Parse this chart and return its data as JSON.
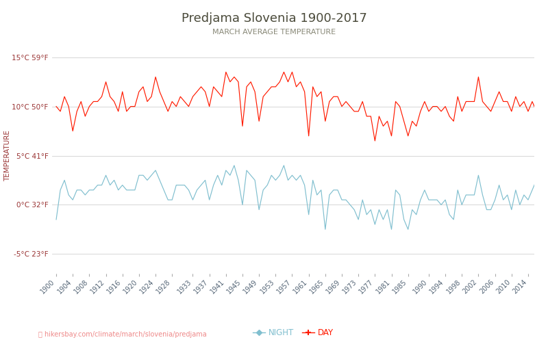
{
  "title": "Predjama Slovenia 1900-2017",
  "subtitle": "MARCH AVERAGE TEMPERATURE",
  "ylabel": "TEMPERATURE",
  "url": "hikersbay.com/climate/march/slovenia/predjama",
  "ylim": [
    -7,
    17
  ],
  "yticks": [
    -5,
    0,
    5,
    10,
    15
  ],
  "ytick_labels": [
    "-5°C 23°F",
    "0°C 32°F",
    "5°C 41°F",
    "10°C 50°F",
    "15°C 59°F"
  ],
  "xtick_labels": [
    "1900",
    "1904",
    "1908",
    "1912",
    "1916",
    "1920",
    "1924",
    "1928",
    "1933",
    "1937",
    "1941",
    "1945",
    "1949",
    "1953",
    "1957",
    "1961",
    "1965",
    "1969",
    "1973",
    "1977",
    "1981",
    "1985",
    "1990",
    "1994",
    "1998",
    "2002",
    "2006",
    "2010",
    "2014"
  ],
  "day_color": "#ff1a00",
  "night_color": "#80bfcf",
  "bg_color": "#ffffff",
  "title_color": "#4a4a3a",
  "subtitle_color": "#888877",
  "legend_night": "NIGHT",
  "legend_day": "DAY",
  "years": [
    1900,
    1901,
    1902,
    1903,
    1904,
    1905,
    1906,
    1907,
    1908,
    1909,
    1910,
    1911,
    1912,
    1913,
    1914,
    1915,
    1916,
    1917,
    1918,
    1919,
    1920,
    1921,
    1922,
    1923,
    1924,
    1925,
    1926,
    1927,
    1928,
    1929,
    1930,
    1931,
    1932,
    1933,
    1934,
    1935,
    1936,
    1937,
    1938,
    1939,
    1940,
    1941,
    1942,
    1943,
    1944,
    1945,
    1946,
    1947,
    1948,
    1949,
    1950,
    1951,
    1952,
    1953,
    1954,
    1955,
    1956,
    1957,
    1958,
    1959,
    1960,
    1961,
    1962,
    1963,
    1964,
    1965,
    1966,
    1967,
    1968,
    1969,
    1970,
    1971,
    1972,
    1973,
    1974,
    1975,
    1976,
    1977,
    1978,
    1979,
    1980,
    1981,
    1982,
    1983,
    1984,
    1985,
    1986,
    1987,
    1988,
    1989,
    1990,
    1991,
    1992,
    1993,
    1994,
    1995,
    1996,
    1997,
    1998,
    1999,
    2000,
    2001,
    2002,
    2003,
    2004,
    2005,
    2006,
    2007,
    2008,
    2009,
    2010,
    2011,
    2012,
    2013,
    2014,
    2015,
    2016
  ],
  "day_temps": [
    10.0,
    9.5,
    11.0,
    10.0,
    7.5,
    9.5,
    10.5,
    9.0,
    10.0,
    10.5,
    10.5,
    11.0,
    12.5,
    11.0,
    10.5,
    9.5,
    11.5,
    9.5,
    10.0,
    10.0,
    11.5,
    12.0,
    10.5,
    11.0,
    13.0,
    11.5,
    10.5,
    9.5,
    10.5,
    10.0,
    11.0,
    10.5,
    10.0,
    11.0,
    11.5,
    12.0,
    11.5,
    10.0,
    12.0,
    11.5,
    11.0,
    13.5,
    12.5,
    13.0,
    12.5,
    8.0,
    12.0,
    12.5,
    11.5,
    8.5,
    11.0,
    11.5,
    12.0,
    12.0,
    12.5,
    13.5,
    12.5,
    13.5,
    12.0,
    12.5,
    11.5,
    7.0,
    12.0,
    11.0,
    11.5,
    8.5,
    10.5,
    11.0,
    11.0,
    10.0,
    10.5,
    10.0,
    9.5,
    9.5,
    10.5,
    9.0,
    9.0,
    6.5,
    9.0,
    8.0,
    8.5,
    7.0,
    10.5,
    10.0,
    8.5,
    7.0,
    8.5,
    8.0,
    9.5,
    10.5,
    9.5,
    10.0,
    10.0,
    9.5,
    10.0,
    9.0,
    8.5,
    11.0,
    9.5,
    10.5,
    10.5,
    10.5,
    13.0,
    10.5,
    10.0,
    9.5,
    10.5,
    11.5,
    10.5,
    10.5,
    9.5,
    11.0,
    10.0,
    10.5,
    9.5,
    10.5,
    9.5
  ],
  "night_temps": [
    -1.5,
    1.5,
    2.5,
    1.0,
    0.5,
    1.5,
    1.5,
    1.0,
    1.5,
    1.5,
    2.0,
    2.0,
    3.0,
    2.0,
    2.5,
    1.5,
    2.0,
    1.5,
    1.5,
    1.5,
    3.0,
    3.0,
    2.5,
    3.0,
    3.5,
    2.5,
    1.5,
    0.5,
    0.5,
    2.0,
    2.0,
    2.0,
    1.5,
    0.5,
    1.5,
    2.0,
    2.5,
    0.5,
    2.0,
    3.0,
    2.0,
    3.5,
    3.0,
    4.0,
    2.5,
    0.0,
    3.5,
    3.0,
    2.5,
    -0.5,
    1.5,
    2.0,
    3.0,
    2.5,
    3.0,
    4.0,
    2.5,
    3.0,
    2.5,
    3.0,
    2.0,
    -1.0,
    2.5,
    1.0,
    1.5,
    -2.5,
    1.0,
    1.5,
    1.5,
    0.5,
    0.5,
    0.0,
    -0.5,
    -1.5,
    0.5,
    -1.0,
    -0.5,
    -2.0,
    -0.5,
    -1.5,
    -0.5,
    -2.5,
    1.5,
    1.0,
    -1.5,
    -2.5,
    -0.5,
    -1.0,
    0.5,
    1.5,
    0.5,
    0.5,
    0.5,
    0.0,
    0.5,
    -1.0,
    -1.5,
    1.5,
    0.0,
    1.0,
    1.0,
    1.0,
    3.0,
    1.0,
    -0.5,
    -0.5,
    0.5,
    2.0,
    0.5,
    1.0,
    -0.5,
    1.5,
    0.0,
    1.0,
    0.5,
    1.5,
    2.5
  ]
}
